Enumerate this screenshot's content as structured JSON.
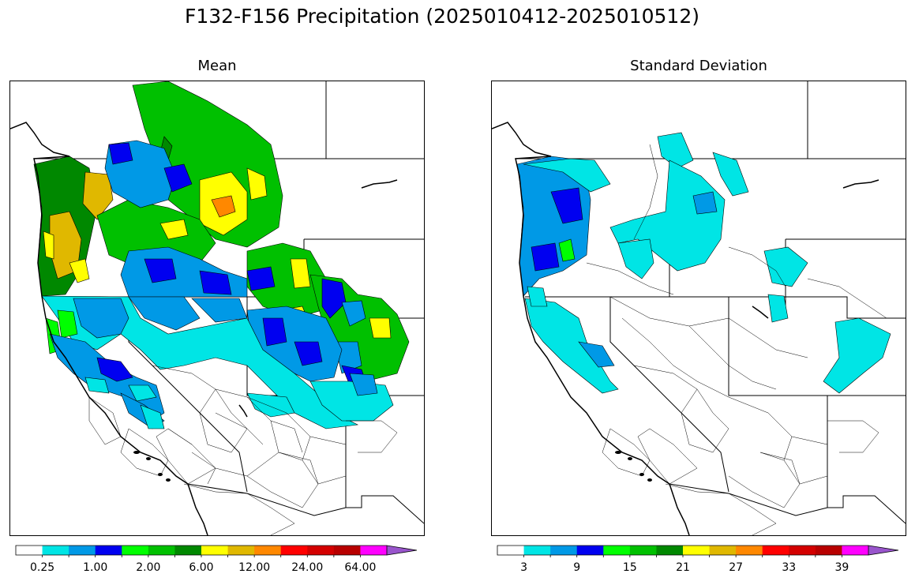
{
  "figure": {
    "title": "F132-F156 Precipitation (2025010412-2025010512)"
  },
  "panels": [
    {
      "title": "Mean",
      "colorbar": {
        "colors": [
          "#ffffff",
          "#00e5e5",
          "#0099e6",
          "#0000f0",
          "#00ff00",
          "#00c000",
          "#008800",
          "#ffff00",
          "#e0b800",
          "#ff8800",
          "#ff0000",
          "#d40000",
          "#b80000",
          "#ff00ff",
          "#9955cc"
        ],
        "tick_labels": [
          "0.25",
          "1.00",
          "2.00",
          "6.00",
          "12.00",
          "24.00",
          "64.00"
        ],
        "extend": "max"
      }
    },
    {
      "title": "Standard Deviation",
      "colorbar": {
        "colors": [
          "#ffffff",
          "#00e5e5",
          "#0099e6",
          "#0000f0",
          "#00ff00",
          "#00c000",
          "#008800",
          "#ffff00",
          "#e0b800",
          "#ff8800",
          "#ff0000",
          "#d40000",
          "#b80000",
          "#ff00ff",
          "#9955cc"
        ],
        "tick_labels": [
          "3",
          "9",
          "15",
          "21",
          "27",
          "33",
          "39"
        ],
        "extend": "max"
      }
    }
  ]
}
